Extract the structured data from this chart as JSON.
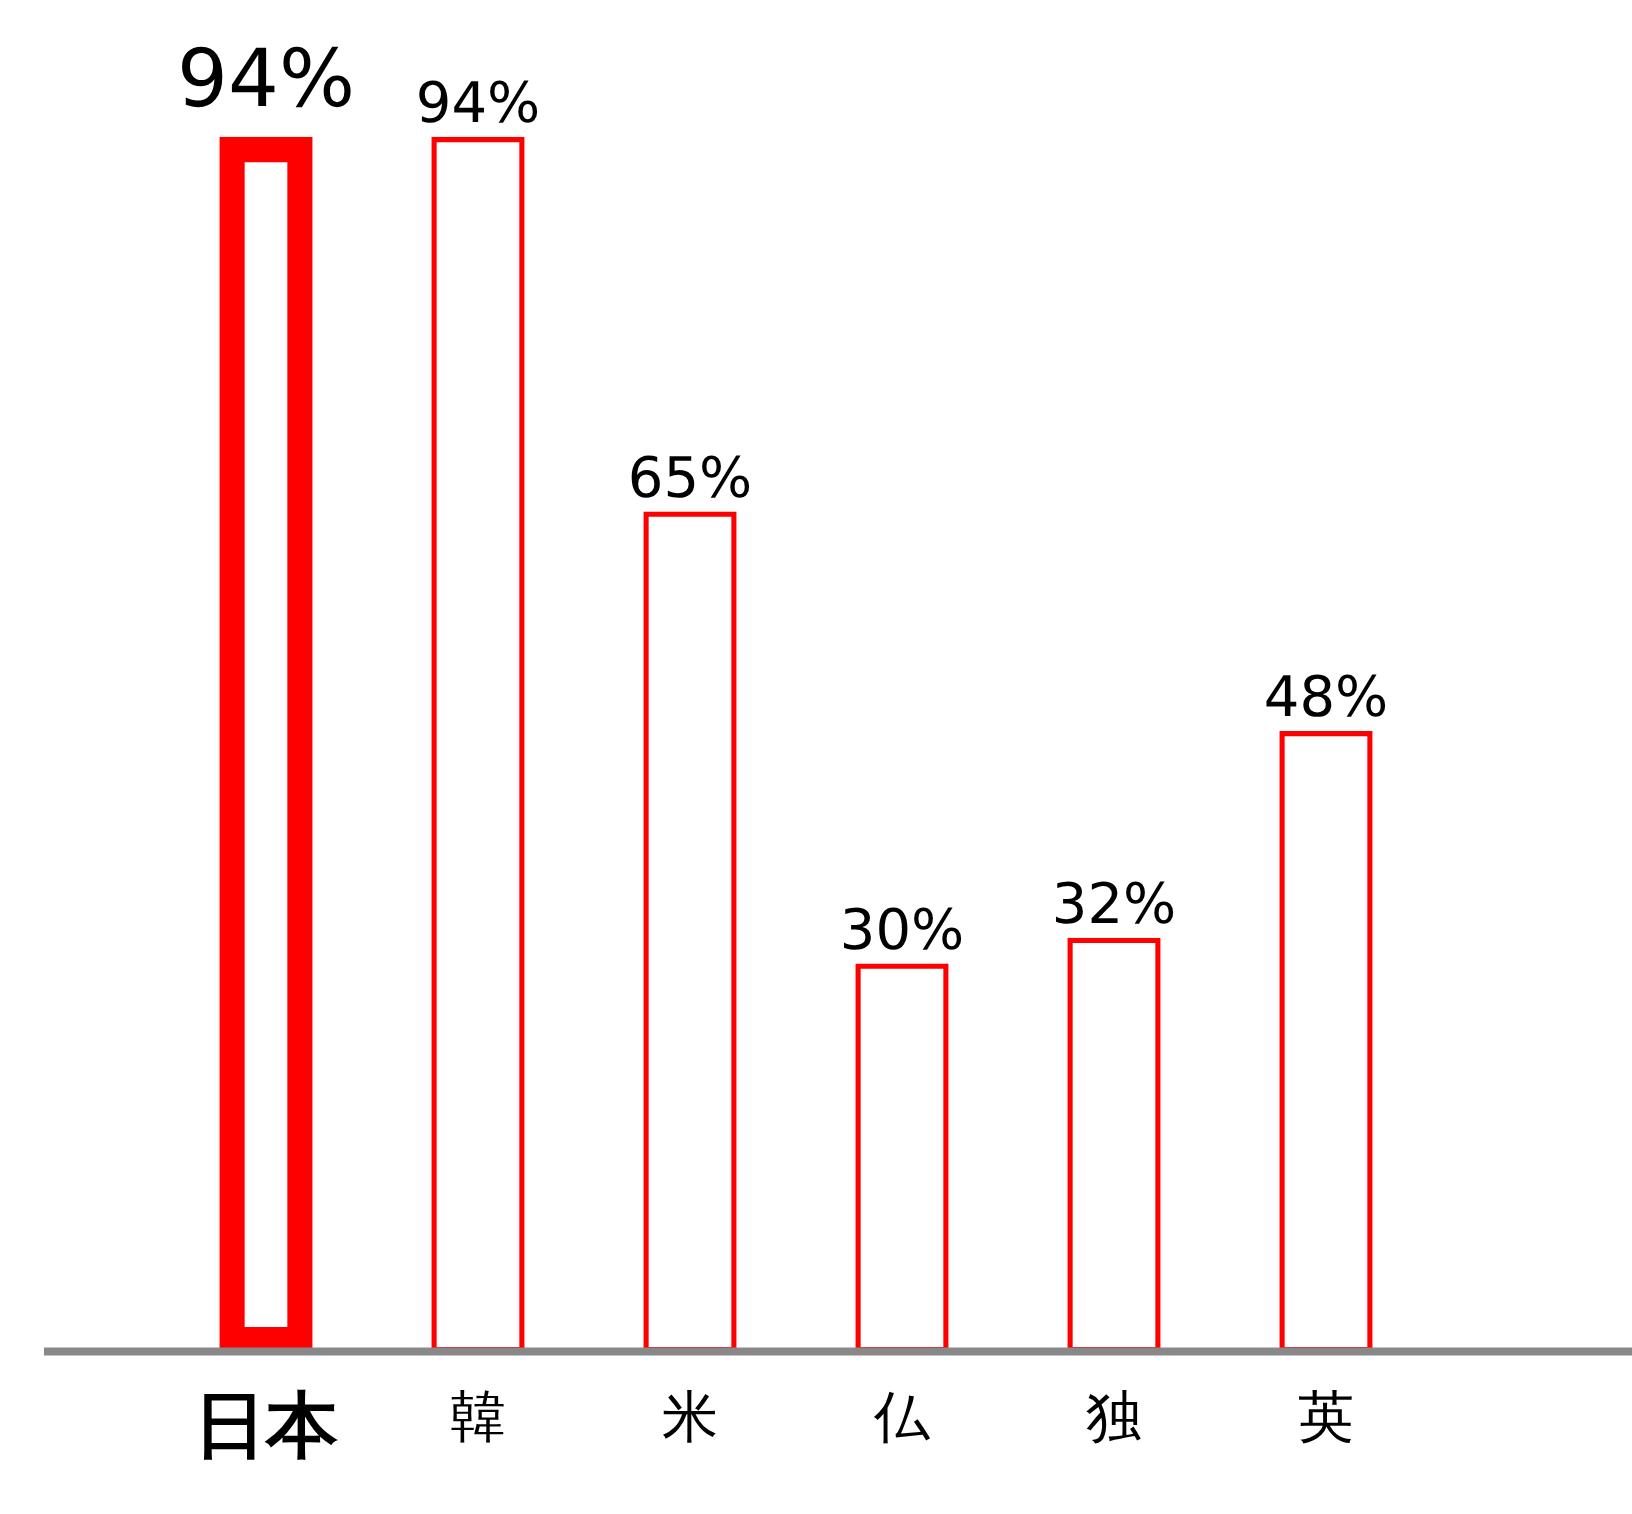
{
  "chart_data": {
    "type": "bar",
    "categories": [
      "日本",
      "韓",
      "米",
      "仏",
      "独",
      "英"
    ],
    "values": [
      94,
      94,
      65,
      30,
      32,
      48
    ],
    "colors": [
      "#ff0000",
      "#ff0000",
      "#ff0000",
      "#ff0000",
      "#ff0000",
      "#ff0000"
    ],
    "value_labels": [
      "94%",
      "94%",
      "65%",
      "30%",
      "32%",
      "48%"
    ],
    "grid": false,
    "legend": false
  }
}
